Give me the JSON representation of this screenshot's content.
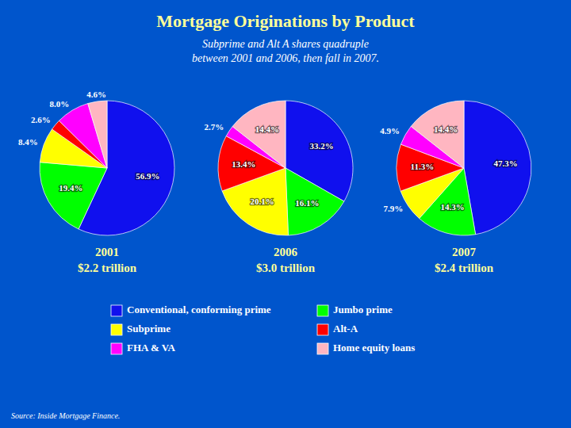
{
  "chart_data": {
    "type": "pie",
    "title": "Mortgage Originations by Product",
    "subtitle": "Subprime and Alt A shares quadruple\nbetween 2001 and 2006, then fall in 2007.",
    "source": "Source: Inside Mortgage Finance.",
    "categories": [
      "Conventional, conforming prime",
      "Jumbo prime",
      "Subprime",
      "Alt-A",
      "FHA & VA",
      "Home equity loans"
    ],
    "colors": [
      "#1010EE",
      "#00FF00",
      "#FFFF00",
      "#FF0000",
      "#FF00FF",
      "#FFB6C1"
    ],
    "legend": "bottom",
    "data_labels": true,
    "series": [
      {
        "name": "2001",
        "annotation": "$2.2 trillion",
        "values": [
          56.9,
          19.4,
          8.4,
          2.6,
          8.0,
          4.6
        ],
        "value_labels": [
          "56.9%",
          "19.4%",
          "8.4%",
          "2.6%",
          "8.0%",
          "4.6%"
        ]
      },
      {
        "name": "2006",
        "annotation": "$3.0 trillion",
        "values": [
          33.2,
          16.1,
          20.1,
          13.4,
          2.7,
          14.4
        ],
        "value_labels": [
          "33.2%",
          "16.1%",
          "20.1%",
          "13.4%",
          "2.7%",
          "14.4%"
        ]
      },
      {
        "name": "2007",
        "annotation": "$2.4 trillion",
        "values": [
          47.3,
          14.3,
          7.9,
          11.3,
          4.9,
          14.4
        ],
        "value_labels": [
          "47.3%",
          "14.3%",
          "7.9%",
          "11.3%",
          "4.9%",
          "14.4%"
        ]
      }
    ]
  }
}
